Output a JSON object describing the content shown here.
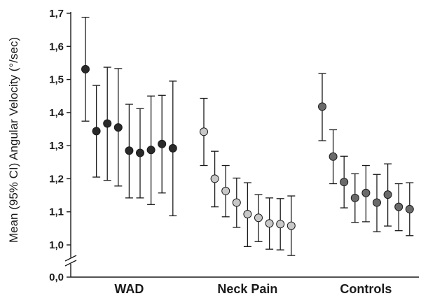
{
  "chart_data": {
    "type": "scatter",
    "title": "",
    "xlabel": "",
    "ylabel": "Mean (95% CI) Angular Velocity (°/sec)",
    "ylim": [
      1.0,
      1.7
    ],
    "y_ticks": [
      "1,0",
      "1,1",
      "1,2",
      "1,3",
      "1,4",
      "1,5",
      "1,6",
      "1,7"
    ],
    "y_tick_values": [
      1.0,
      1.1,
      1.2,
      1.3,
      1.4,
      1.5,
      1.6,
      1.7
    ],
    "y_zero_label": "0,0",
    "axis_break": true,
    "grid": false,
    "error_bars": "95% CI",
    "groups": [
      {
        "name": "WAD",
        "color": "#2a2a2a",
        "means": [
          1.531,
          1.344,
          1.367,
          1.355,
          1.285,
          1.278,
          1.287,
          1.305,
          1.292
        ],
        "lower": [
          1.374,
          1.205,
          1.195,
          1.178,
          1.142,
          1.142,
          1.122,
          1.157,
          1.088
        ],
        "upper": [
          1.688,
          1.482,
          1.537,
          1.533,
          1.425,
          1.412,
          1.45,
          1.452,
          1.495
        ]
      },
      {
        "name": "Neck Pain",
        "color": "#c8c8c8",
        "means": [
          1.342,
          1.2,
          1.163,
          1.128,
          1.093,
          1.082,
          1.065,
          1.063,
          1.058
        ],
        "lower": [
          1.24,
          1.115,
          1.085,
          1.053,
          0.995,
          1.01,
          0.987,
          0.985,
          0.968
        ],
        "upper": [
          1.443,
          1.283,
          1.24,
          1.202,
          1.188,
          1.152,
          1.142,
          1.14,
          1.148
        ]
      },
      {
        "name": "Controls",
        "color": "#6a6a6a",
        "means": [
          1.418,
          1.267,
          1.19,
          1.142,
          1.157,
          1.128,
          1.152,
          1.115,
          1.108
        ],
        "lower": [
          1.315,
          1.185,
          1.112,
          1.068,
          1.07,
          1.04,
          1.057,
          1.043,
          1.028
        ],
        "upper": [
          1.518,
          1.348,
          1.268,
          1.215,
          1.24,
          1.213,
          1.245,
          1.185,
          1.188
        ]
      }
    ]
  }
}
